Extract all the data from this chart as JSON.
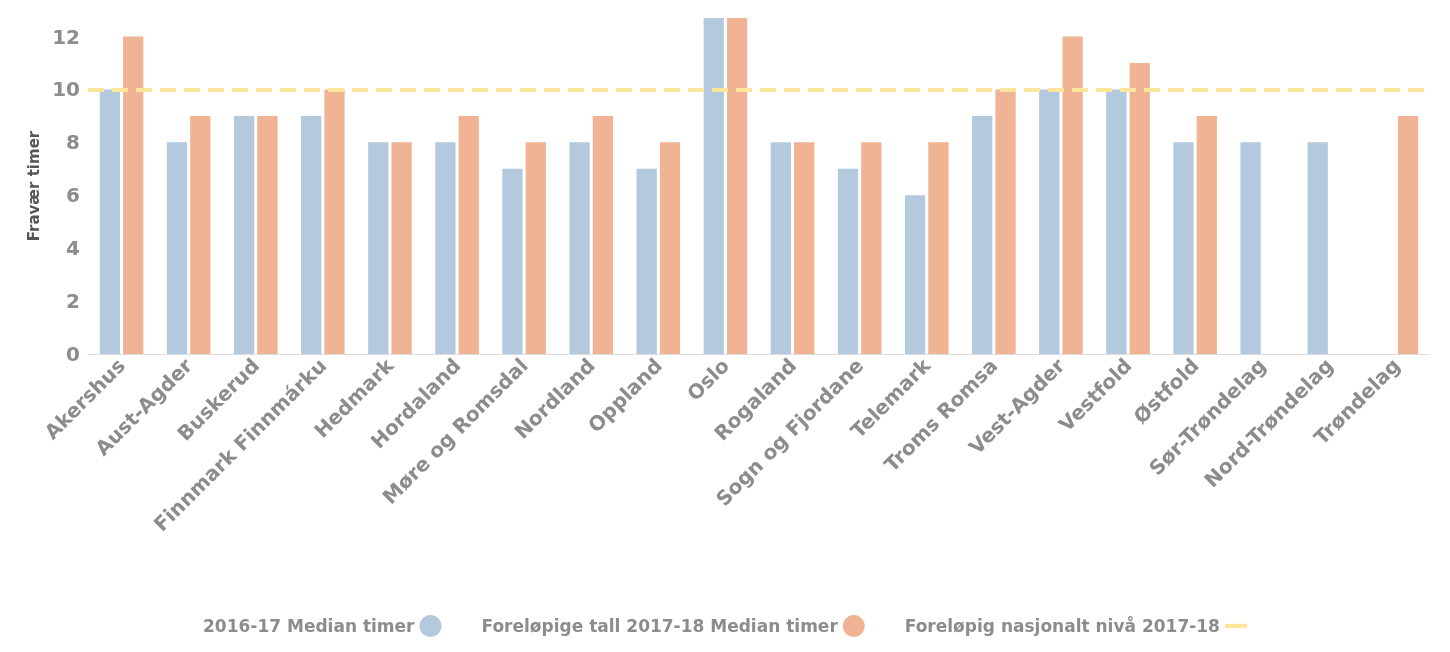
{
  "chart_data": {
    "type": "bar",
    "ylabel": "Fravær timer",
    "categories": [
      "Akershus",
      "Aust-Agder",
      "Buskerud",
      "Finnmark Finnmárku",
      "Hedmark",
      "Hordaland",
      "Møre og Romsdal",
      "Nordland",
      "Oppland",
      "Oslo",
      "Rogaland",
      "Sogn og Fjordane",
      "Telemark",
      "Troms Romsa",
      "Vest-Agder",
      "Vestfold",
      "Østfold",
      "Sør-Trøndelag",
      "Nord-Trøndelag",
      "Trøndelag"
    ],
    "series": [
      {
        "name": "2016-17 Median timer",
        "color": "#b3c9dd",
        "values": [
          10,
          8,
          9,
          9,
          8,
          8,
          7,
          8,
          7,
          12.7,
          8,
          7,
          6,
          9,
          10,
          10,
          8,
          8,
          8,
          null
        ]
      },
      {
        "name": "Foreløpige tall 2017-18 Median timer",
        "color": "#f0b495",
        "values": [
          12,
          9,
          9,
          10,
          8,
          9,
          8,
          9,
          8,
          12.7,
          8,
          8,
          8,
          10,
          12,
          11,
          9,
          null,
          null,
          9
        ]
      }
    ],
    "ref_lines": [
      {
        "axis": "y",
        "value": 10,
        "label": "Foreløpig nasjonalt nivå 2017-18",
        "color": "#fde59c",
        "line_style": "dashed"
      }
    ],
    "ylim": [
      0,
      12.7
    ],
    "yticks": [
      0,
      2,
      4,
      6,
      8,
      10,
      12
    ],
    "grid": false,
    "legend": "bottom"
  }
}
